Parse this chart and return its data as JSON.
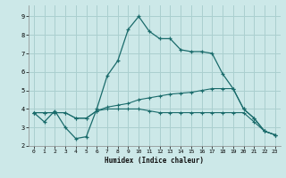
{
  "xlabel": "Humidex (Indice chaleur)",
  "bg_color": "#cce8e8",
  "grid_color": "#aacfcf",
  "line_color": "#1a6b6b",
  "xlim": [
    -0.5,
    23.5
  ],
  "ylim": [
    2.0,
    9.6
  ],
  "xticks": [
    0,
    1,
    2,
    3,
    4,
    5,
    6,
    7,
    8,
    9,
    10,
    11,
    12,
    13,
    14,
    15,
    16,
    17,
    18,
    19,
    20,
    21,
    22,
    23
  ],
  "yticks": [
    2,
    3,
    4,
    5,
    6,
    7,
    8,
    9
  ],
  "series1_x": [
    0,
    1,
    2,
    3,
    4,
    5,
    6,
    7,
    8,
    9,
    10,
    11,
    12,
    13,
    14,
    15,
    16,
    17,
    18,
    19,
    20,
    21,
    22,
    23
  ],
  "series1_y": [
    3.8,
    3.3,
    3.9,
    3.0,
    2.4,
    2.5,
    4.0,
    5.8,
    6.6,
    8.3,
    9.0,
    8.2,
    7.8,
    7.8,
    7.2,
    7.1,
    7.1,
    7.0,
    5.9,
    5.1,
    4.0,
    3.5,
    2.8,
    2.6
  ],
  "series2_x": [
    0,
    1,
    2,
    3,
    4,
    5,
    6,
    7,
    8,
    9,
    10,
    11,
    12,
    13,
    14,
    15,
    16,
    17,
    18,
    19,
    20,
    21,
    22,
    23
  ],
  "series2_y": [
    3.8,
    3.8,
    3.8,
    3.8,
    3.5,
    3.5,
    3.9,
    4.1,
    4.2,
    4.3,
    4.5,
    4.6,
    4.7,
    4.8,
    4.85,
    4.9,
    5.0,
    5.1,
    5.1,
    5.1,
    4.0,
    3.5,
    2.8,
    2.6
  ],
  "series3_x": [
    0,
    1,
    2,
    3,
    4,
    5,
    6,
    7,
    8,
    9,
    10,
    11,
    12,
    13,
    14,
    15,
    16,
    17,
    18,
    19,
    20,
    21,
    22,
    23
  ],
  "series3_y": [
    3.8,
    3.8,
    3.8,
    3.8,
    3.5,
    3.5,
    3.9,
    4.0,
    4.0,
    4.0,
    4.0,
    3.9,
    3.8,
    3.8,
    3.8,
    3.8,
    3.8,
    3.8,
    3.8,
    3.8,
    3.8,
    3.3,
    2.8,
    2.6
  ]
}
